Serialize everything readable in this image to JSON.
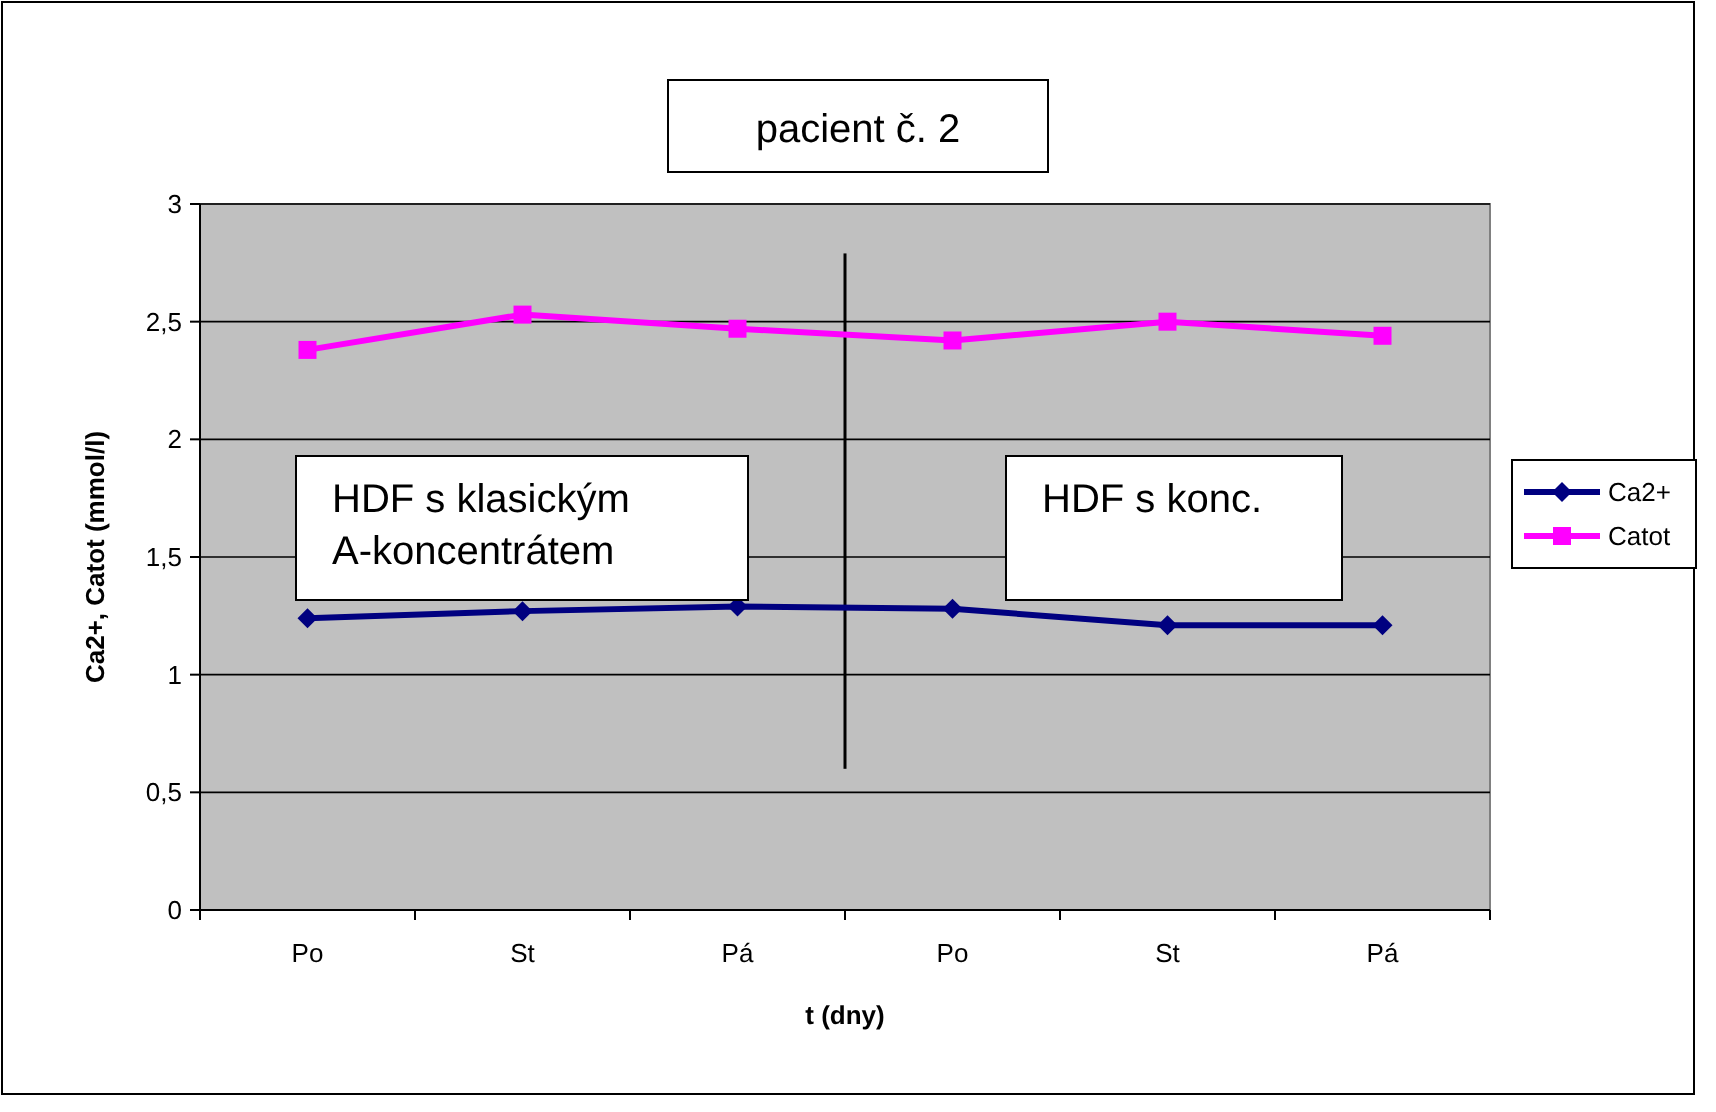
{
  "chart_data": {
    "type": "line",
    "title": "pacient č. 2",
    "xlabel": "t (dny)",
    "ylabel": "Ca2+,  Catot (mmol/l)",
    "categories": [
      "Po",
      "St",
      "Pá",
      "Po",
      "St",
      "Pá"
    ],
    "series": [
      {
        "name": "Ca2+",
        "color": "#000080",
        "marker": "diamond",
        "values": [
          1.24,
          1.27,
          1.29,
          1.28,
          1.21,
          1.21
        ]
      },
      {
        "name": "Catot",
        "color": "#ff00ff",
        "marker": "square",
        "values": [
          2.38,
          2.53,
          2.47,
          2.42,
          2.5,
          2.44
        ]
      }
    ],
    "ylim": [
      0,
      3
    ],
    "yticks": [
      {
        "value": 0,
        "label": "0"
      },
      {
        "value": 0.5,
        "label": "0,5"
      },
      {
        "value": 1,
        "label": "1"
      },
      {
        "value": 1.5,
        "label": "1,5"
      },
      {
        "value": 2,
        "label": "2"
      },
      {
        "value": 2.5,
        "label": "2,5"
      },
      {
        "value": 3,
        "label": "3"
      }
    ],
    "grid": "y",
    "legend": "right",
    "line_style": "solid",
    "annotations": [
      "HDF s klasickým A-koncentrátem",
      "HDF s konc."
    ]
  }
}
